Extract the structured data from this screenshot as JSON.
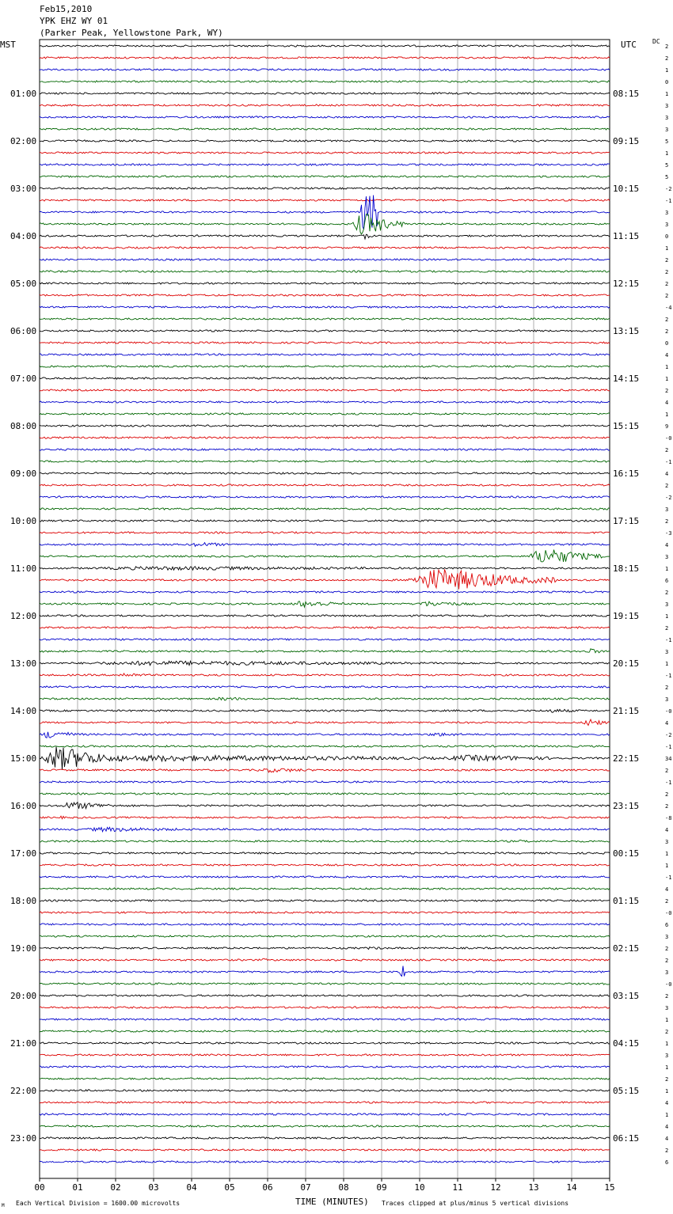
{
  "header": {
    "date": "Feb15,2010",
    "station": "YPK EHZ WY 01",
    "location": "(Parker Peak, Yellowstone Park, WY)"
  },
  "axes": {
    "left_tz": "MST",
    "right_tz": "UTC",
    "dc_label": "DC",
    "xlabel": "TIME (MINUTES)"
  },
  "footer": {
    "scale": "Each Vertical Division = 1600.00 microvolts",
    "clip_note": "Traces clipped at plus/minus 5 vertical divisions",
    "corner_mark": "M"
  },
  "chart_data": {
    "type": "line",
    "title": "YPK EHZ WY 01",
    "xlabel": "TIME (MINUTES)",
    "xlim": [
      0,
      15
    ],
    "x_ticks": [
      "00",
      "01",
      "02",
      "03",
      "04",
      "05",
      "06",
      "07",
      "08",
      "09",
      "10",
      "11",
      "12",
      "13",
      "14",
      "15"
    ],
    "rows_per_hour": 4,
    "row_minutes": 15,
    "trace_colors": [
      "#000000",
      "#dd0000",
      "#0000cc",
      "#006600"
    ],
    "mst_hour_labels": [
      "01:00",
      "02:00",
      "03:00",
      "04:00",
      "05:00",
      "06:00",
      "07:00",
      "08:00",
      "09:00",
      "10:00",
      "11:00",
      "12:00",
      "13:00",
      "14:00",
      "15:00",
      "16:00",
      "17:00",
      "18:00",
      "19:00",
      "20:00",
      "21:00",
      "22:00",
      "23:00"
    ],
    "utc_hour_labels": [
      "08:15",
      "09:15",
      "10:15",
      "11:15",
      "12:15",
      "13:15",
      "14:15",
      "15:15",
      "16:15",
      "17:15",
      "18:15",
      "19:15",
      "20:15",
      "21:15",
      "22:15",
      "23:15",
      "00:15",
      "01:15",
      "02:15",
      "03:15",
      "04:15",
      "05:15",
      "06:15"
    ],
    "dc_offsets": [
      "2",
      "2",
      "1",
      "0",
      "1",
      "3",
      "3",
      "3",
      "5",
      "1",
      "5",
      "5",
      "-2",
      "-1",
      "3",
      "3",
      "0",
      "1",
      "2",
      "2",
      "2",
      "2",
      "-4",
      "2",
      "2",
      "0",
      "4",
      "1",
      "1",
      "2",
      "4",
      "1",
      "9",
      "-0",
      "2",
      "-1",
      "4",
      "2",
      "-2",
      "3",
      "2",
      "-3",
      "4",
      "3",
      "1",
      "6",
      "2",
      "3",
      "1",
      "2",
      "-1",
      "3",
      "1",
      "-1",
      "2",
      "3",
      "-0",
      "4",
      "-2",
      "-1",
      "34",
      "2",
      "-1",
      "2",
      "2",
      "-8",
      "4",
      "3",
      "1",
      "1",
      "-1",
      "4",
      "2",
      "-0",
      "6",
      "3",
      "2",
      "2",
      "3",
      "-0",
      "2",
      "3",
      "1",
      "2",
      "1",
      "3",
      "1",
      "2",
      "1",
      "4",
      "1",
      "4",
      "4",
      "2",
      "6"
    ],
    "events": [
      {
        "row": 14,
        "start_min": 8.45,
        "end_min": 8.9,
        "amplitude": 4.5,
        "note": "spike"
      },
      {
        "row": 15,
        "start_min": 8.2,
        "end_min": 9.6,
        "amplitude": 3.0
      },
      {
        "row": 16,
        "start_min": 8.5,
        "end_min": 8.75,
        "amplitude": 1.5
      },
      {
        "row": 42,
        "start_min": 3.8,
        "end_min": 5.5,
        "amplitude": 0.6
      },
      {
        "row": 43,
        "start_min": 12.8,
        "end_min": 15.0,
        "amplitude": 2.2
      },
      {
        "row": 44,
        "start_min": 0.0,
        "end_min": 15.0,
        "amplitude": 0.5
      },
      {
        "row": 45,
        "start_min": 9.6,
        "end_min": 13.6,
        "amplitude": 3.0
      },
      {
        "row": 47,
        "start_min": 6.5,
        "end_min": 8.5,
        "amplitude": 0.9
      },
      {
        "row": 47,
        "start_min": 9.7,
        "end_min": 12.0,
        "amplitude": 0.7
      },
      {
        "row": 51,
        "start_min": 14.3,
        "end_min": 15.0,
        "amplitude": 0.8
      },
      {
        "row": 52,
        "start_min": 0.0,
        "end_min": 15.0,
        "amplitude": 0.6
      },
      {
        "row": 53,
        "start_min": 1.9,
        "end_min": 3.3,
        "amplitude": 0.6
      },
      {
        "row": 55,
        "start_min": 4.5,
        "end_min": 6.0,
        "amplitude": 0.5
      },
      {
        "row": 56,
        "start_min": 13.0,
        "end_min": 15.0,
        "amplitude": 0.5
      },
      {
        "row": 57,
        "start_min": 14.3,
        "end_min": 15.0,
        "amplitude": 1.2
      },
      {
        "row": 58,
        "start_min": 0.0,
        "end_min": 1.2,
        "amplitude": 1.2
      },
      {
        "row": 58,
        "start_min": 10.0,
        "end_min": 12.0,
        "amplitude": 0.5
      },
      {
        "row": 60,
        "start_min": 0.0,
        "end_min": 15.0,
        "amplitude": 0.8
      },
      {
        "row": 60,
        "start_min": 0.0,
        "end_min": 2.2,
        "amplitude": 3.2
      },
      {
        "row": 60,
        "start_min": 10.3,
        "end_min": 15.0,
        "amplitude": 0.8
      },
      {
        "row": 61,
        "start_min": 5.5,
        "end_min": 8.0,
        "amplitude": 0.6
      },
      {
        "row": 64,
        "start_min": 0.4,
        "end_min": 2.5,
        "amplitude": 1.0
      },
      {
        "row": 65,
        "start_min": 0.4,
        "end_min": 1.0,
        "amplitude": 0.4
      },
      {
        "row": 66,
        "start_min": 0.8,
        "end_min": 5.2,
        "amplitude": 0.6
      },
      {
        "row": 67,
        "start_min": 12.5,
        "end_min": 13.5,
        "amplitude": 0.4
      },
      {
        "row": 76,
        "start_min": 8.5,
        "end_min": 9.5,
        "amplitude": 0.4
      },
      {
        "row": 77,
        "start_min": 5.8,
        "end_min": 6.2,
        "amplitude": 0.4
      },
      {
        "row": 78,
        "start_min": 9.45,
        "end_min": 9.6,
        "amplitude": 1.8,
        "note": "spike"
      }
    ]
  }
}
